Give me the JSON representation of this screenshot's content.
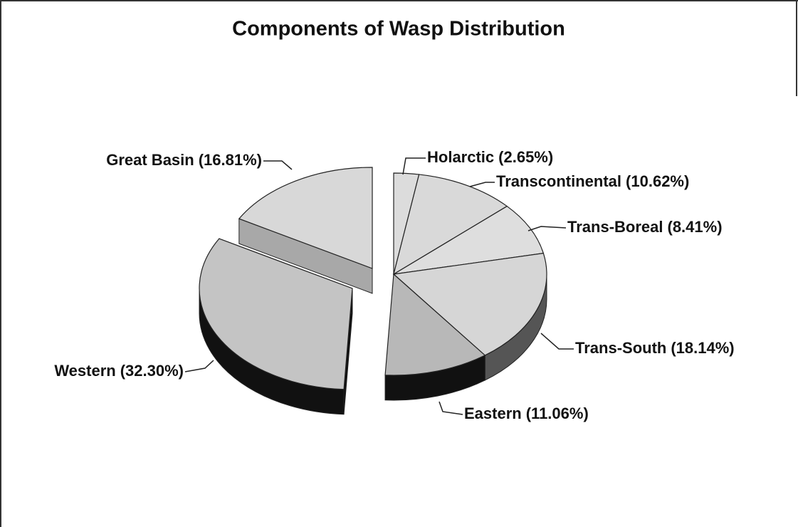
{
  "chart_data": {
    "type": "pie3d",
    "title": "Components of Wasp Distribution",
    "categories": [
      "Holarctic",
      "Transcontinental",
      "Trans-Boreal",
      "Trans-South",
      "Eastern",
      "Western",
      "Great Basin"
    ],
    "values": [
      2.65,
      10.62,
      8.41,
      18.14,
      11.06,
      32.3,
      16.81
    ],
    "value_labels": [
      "(2.65%)",
      "(10.62%)",
      "(8.41%)",
      "(18.14%)",
      "(11.06%)",
      "(32.30%)",
      "(16.81%)"
    ],
    "colors": [
      "#dcdcdc",
      "#d9d9d9",
      "#dedede",
      "#d6d6d6",
      "#b8b8b8",
      "#c4c4c4",
      "#d8d8d8"
    ],
    "side_colors": [
      "#9a9a9a",
      "#8f8f8f",
      "#999999",
      "#555555",
      "#111111",
      "#111111",
      "#a8a8a8"
    ]
  }
}
